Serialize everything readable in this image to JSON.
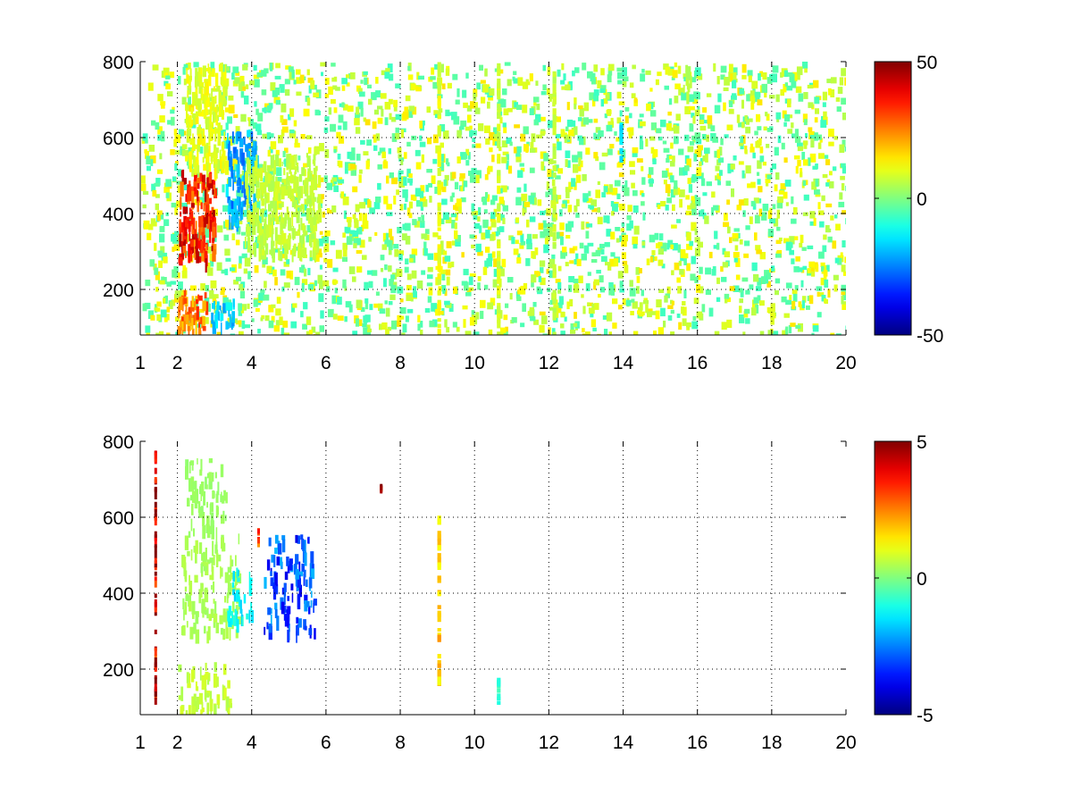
{
  "chart_data": [
    {
      "type": "heatmap",
      "title": "",
      "xlabel": "",
      "ylabel": "",
      "x_ticks": [
        "1",
        "2",
        "4",
        "6",
        "8",
        "10",
        "12",
        "14",
        "16",
        "18",
        "20"
      ],
      "x_tick_values": [
        1,
        2,
        4,
        6,
        8,
        10,
        12,
        14,
        16,
        18,
        20
      ],
      "y_ticks": [
        "200",
        "400",
        "600",
        "800"
      ],
      "y_tick_values": [
        200,
        400,
        600,
        800
      ],
      "xlim": [
        1,
        20
      ],
      "ylim": [
        80,
        800
      ],
      "grid": true,
      "colormap": "jet",
      "colorbar": {
        "range": [
          -50,
          50
        ],
        "ticks": [
          "50",
          "0",
          "-50"
        ],
        "tick_values": [
          50,
          0,
          -50
        ]
      },
      "features": [
        {
          "x": [
            2.0,
            3.0
          ],
          "y": [
            280,
            520
          ],
          "value": 40
        },
        {
          "x": [
            2.0,
            2.8
          ],
          "y": [
            90,
            200
          ],
          "value": 30
        },
        {
          "x": [
            3.3,
            4.1
          ],
          "y": [
            380,
            620
          ],
          "value": -25
        },
        {
          "x": [
            2.9,
            3.5
          ],
          "y": [
            110,
            180
          ],
          "value": -20
        },
        {
          "x": [
            2.2,
            3.3
          ],
          "y": [
            520,
            800
          ],
          "value": 12
        },
        {
          "x": [
            3.8,
            5.8
          ],
          "y": [
            300,
            560
          ],
          "value": 8
        },
        {
          "x": [
            9.0,
            9.1
          ],
          "y": [
            80,
            800
          ],
          "value": 12
        },
        {
          "x": [
            10.6,
            10.7
          ],
          "y": [
            80,
            800
          ],
          "value": 10
        },
        {
          "x": [
            12.1,
            12.2
          ],
          "y": [
            80,
            800
          ],
          "value": 8
        },
        {
          "x": [
            13.9,
            14.0
          ],
          "y": [
            520,
            640
          ],
          "value": -15
        },
        {
          "x": [
            15.6,
            15.8
          ],
          "y": [
            720,
            800
          ],
          "value": 6
        }
      ]
    },
    {
      "type": "heatmap",
      "title": "",
      "xlabel": "",
      "ylabel": "",
      "x_ticks": [
        "1",
        "2",
        "4",
        "6",
        "8",
        "10",
        "12",
        "14",
        "16",
        "18",
        "20"
      ],
      "x_tick_values": [
        1,
        2,
        4,
        6,
        8,
        10,
        12,
        14,
        16,
        18,
        20
      ],
      "y_ticks": [
        "200",
        "400",
        "600",
        "800"
      ],
      "y_tick_values": [
        200,
        400,
        600,
        800
      ],
      "xlim": [
        1,
        20
      ],
      "ylim": [
        80,
        800
      ],
      "grid": true,
      "colormap": "jet",
      "colorbar": {
        "range": [
          -5,
          5
        ],
        "ticks": [
          "5",
          "0",
          "-5"
        ],
        "tick_values": [
          5,
          0,
          -5
        ]
      },
      "features": [
        {
          "x": [
            1.38,
            1.45
          ],
          "y": [
            120,
            780
          ],
          "value": 5
        },
        {
          "x": [
            2.1,
            3.7
          ],
          "y": [
            300,
            560
          ],
          "value": 0.5
        },
        {
          "x": [
            2.2,
            3.3
          ],
          "y": [
            560,
            760
          ],
          "value": 0.3
        },
        {
          "x": [
            2.0,
            3.4
          ],
          "y": [
            90,
            220
          ],
          "value": 0.8
        },
        {
          "x": [
            3.3,
            4.0
          ],
          "y": [
            330,
            470
          ],
          "value": -1.5
        },
        {
          "x": [
            4.3,
            5.7
          ],
          "y": [
            300,
            560
          ],
          "value": -3.5
        },
        {
          "x": [
            4.15,
            4.2
          ],
          "y": [
            520,
            580
          ],
          "value": 4
        },
        {
          "x": [
            9.0,
            9.1
          ],
          "y": [
            160,
            610
          ],
          "value": 2
        },
        {
          "x": [
            7.45,
            7.5
          ],
          "y": [
            680,
            690
          ],
          "value": 5
        },
        {
          "x": [
            10.6,
            10.7
          ],
          "y": [
            100,
            180
          ],
          "value": -1
        }
      ]
    }
  ]
}
